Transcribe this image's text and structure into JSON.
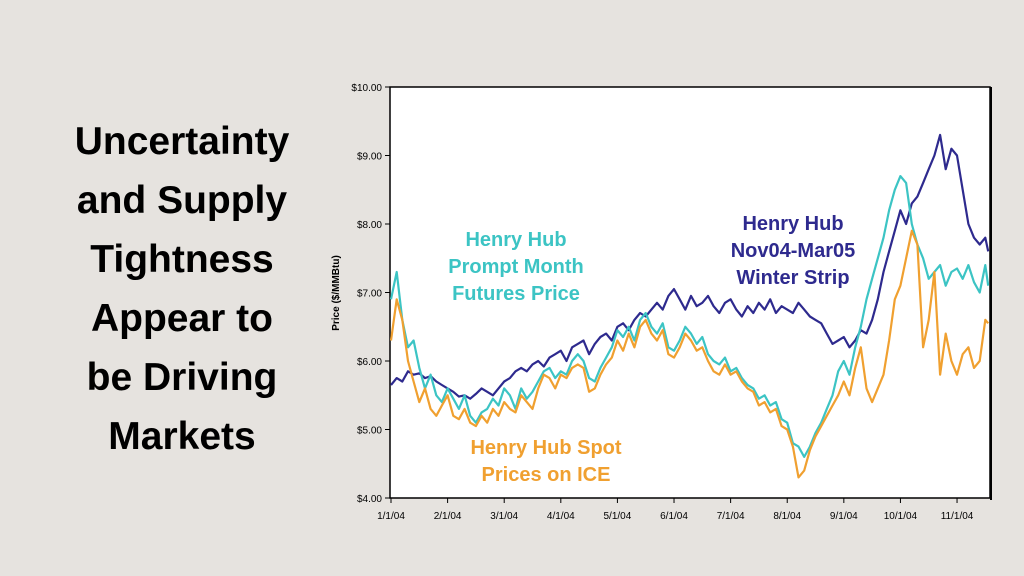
{
  "slide": {
    "title_lines": [
      "Uncertainty",
      "and Supply",
      "Tightness",
      "Appear to",
      "be Driving",
      "Markets"
    ]
  },
  "chart_data": {
    "type": "line",
    "ylabel": "Price ($/MMBtu)",
    "ylim": [
      4,
      10
    ],
    "y_ticks": [
      "$4.00",
      "$5.00",
      "$6.00",
      "$7.00",
      "$8.00",
      "$9.00",
      "$10.00"
    ],
    "x_ticks": [
      "1/1/04",
      "2/1/04",
      "3/1/04",
      "4/1/04",
      "5/1/04",
      "6/1/04",
      "7/1/04",
      "8/1/04",
      "9/1/04",
      "10/1/04",
      "11/1/04"
    ],
    "xlim": [
      0,
      10.6
    ],
    "grid": false,
    "series": [
      {
        "name": "Henry Hub Nov04-Mar05 Winter Strip",
        "color": "#2e2a8e",
        "label_lines": [
          "Henry Hub",
          "Nov04-Mar05",
          "Winter Strip"
        ],
        "x": [
          0.0,
          0.1,
          0.2,
          0.3,
          0.4,
          0.5,
          0.6,
          0.7,
          0.8,
          0.9,
          1.0,
          1.1,
          1.2,
          1.3,
          1.4,
          1.5,
          1.6,
          1.7,
          1.8,
          1.9,
          2.0,
          2.1,
          2.2,
          2.3,
          2.4,
          2.5,
          2.6,
          2.7,
          2.8,
          2.9,
          3.0,
          3.1,
          3.2,
          3.3,
          3.4,
          3.5,
          3.6,
          3.7,
          3.8,
          3.9,
          4.0,
          4.1,
          4.2,
          4.3,
          4.4,
          4.5,
          4.6,
          4.7,
          4.8,
          4.9,
          5.0,
          5.1,
          5.2,
          5.3,
          5.4,
          5.5,
          5.6,
          5.7,
          5.8,
          5.9,
          6.0,
          6.1,
          6.2,
          6.3,
          6.4,
          6.5,
          6.6,
          6.7,
          6.8,
          6.9,
          7.0,
          7.1,
          7.2,
          7.3,
          7.4,
          7.5,
          7.6,
          7.7,
          7.8,
          7.9,
          8.0,
          8.1,
          8.2,
          8.3,
          8.4,
          8.5,
          8.6,
          8.7,
          8.8,
          8.9,
          9.0,
          9.1,
          9.2,
          9.3,
          9.4,
          9.5,
          9.6,
          9.7,
          9.8,
          9.9,
          10.0,
          10.1,
          10.2,
          10.3,
          10.4,
          10.5,
          10.55
        ],
        "values": [
          5.65,
          5.75,
          5.7,
          5.85,
          5.8,
          5.82,
          5.75,
          5.78,
          5.7,
          5.65,
          5.6,
          5.55,
          5.48,
          5.5,
          5.45,
          5.52,
          5.6,
          5.55,
          5.5,
          5.6,
          5.7,
          5.75,
          5.85,
          5.9,
          5.85,
          5.95,
          6.0,
          5.92,
          6.05,
          6.1,
          6.15,
          6.0,
          6.2,
          6.25,
          6.3,
          6.1,
          6.25,
          6.35,
          6.4,
          6.3,
          6.5,
          6.55,
          6.45,
          6.6,
          6.7,
          6.65,
          6.75,
          6.85,
          6.75,
          6.95,
          7.05,
          6.9,
          6.75,
          6.95,
          6.8,
          6.85,
          6.95,
          6.8,
          6.7,
          6.85,
          6.9,
          6.75,
          6.65,
          6.8,
          6.7,
          6.85,
          6.75,
          6.9,
          6.7,
          6.8,
          6.75,
          6.7,
          6.85,
          6.75,
          6.65,
          6.6,
          6.55,
          6.4,
          6.25,
          6.3,
          6.35,
          6.2,
          6.3,
          6.45,
          6.4,
          6.6,
          6.9,
          7.3,
          7.6,
          7.9,
          8.2,
          8.0,
          8.3,
          8.4,
          8.6,
          8.8,
          9.0,
          9.3,
          8.8,
          9.1,
          9.0,
          8.5,
          8.0,
          7.8,
          7.7,
          7.8,
          7.6
        ]
      },
      {
        "name": "Henry Hub Prompt Month Futures Price",
        "color": "#3cc4c4",
        "label_lines": [
          "Henry Hub",
          "Prompt Month",
          "Futures Price"
        ],
        "x": [
          0.0,
          0.1,
          0.2,
          0.3,
          0.4,
          0.5,
          0.6,
          0.7,
          0.8,
          0.9,
          1.0,
          1.1,
          1.2,
          1.3,
          1.4,
          1.5,
          1.6,
          1.7,
          1.8,
          1.9,
          2.0,
          2.1,
          2.2,
          2.3,
          2.4,
          2.5,
          2.6,
          2.7,
          2.8,
          2.9,
          3.0,
          3.1,
          3.2,
          3.3,
          3.4,
          3.5,
          3.6,
          3.7,
          3.8,
          3.9,
          4.0,
          4.1,
          4.2,
          4.3,
          4.4,
          4.5,
          4.6,
          4.7,
          4.8,
          4.9,
          5.0,
          5.1,
          5.2,
          5.3,
          5.4,
          5.5,
          5.6,
          5.7,
          5.8,
          5.9,
          6.0,
          6.1,
          6.2,
          6.3,
          6.4,
          6.5,
          6.6,
          6.7,
          6.8,
          6.9,
          7.0,
          7.1,
          7.2,
          7.3,
          7.4,
          7.5,
          7.6,
          7.7,
          7.8,
          7.9,
          8.0,
          8.1,
          8.2,
          8.3,
          8.4,
          8.5,
          8.6,
          8.7,
          8.8,
          8.9,
          9.0,
          9.1,
          9.2,
          9.3,
          9.4,
          9.5,
          9.6,
          9.7,
          9.8,
          9.9,
          10.0,
          10.1,
          10.2,
          10.3,
          10.4,
          10.5,
          10.55
        ],
        "values": [
          6.9,
          7.3,
          6.6,
          6.2,
          6.3,
          5.9,
          5.6,
          5.8,
          5.5,
          5.4,
          5.6,
          5.45,
          5.3,
          5.5,
          5.2,
          5.1,
          5.25,
          5.3,
          5.45,
          5.35,
          5.6,
          5.5,
          5.3,
          5.6,
          5.45,
          5.55,
          5.7,
          5.85,
          5.9,
          5.75,
          5.85,
          5.8,
          6.0,
          6.1,
          6.0,
          5.75,
          5.7,
          5.9,
          6.05,
          6.2,
          6.45,
          6.35,
          6.5,
          6.3,
          6.6,
          6.7,
          6.5,
          6.4,
          6.55,
          6.2,
          6.15,
          6.3,
          6.5,
          6.4,
          6.25,
          6.35,
          6.1,
          6.0,
          5.95,
          6.05,
          5.85,
          5.9,
          5.75,
          5.65,
          5.6,
          5.45,
          5.5,
          5.35,
          5.4,
          5.15,
          5.1,
          4.8,
          4.75,
          4.6,
          4.75,
          4.95,
          5.1,
          5.3,
          5.5,
          5.85,
          6.0,
          5.8,
          6.2,
          6.5,
          6.9,
          7.2,
          7.5,
          7.8,
          8.2,
          8.5,
          8.7,
          8.6,
          8.0,
          7.7,
          7.5,
          7.2,
          7.3,
          7.4,
          7.1,
          7.3,
          7.35,
          7.2,
          7.4,
          7.15,
          7.0,
          7.4,
          7.1
        ]
      },
      {
        "name": "Henry Hub Spot Prices on ICE",
        "color": "#f0a030",
        "label_lines": [
          "Henry Hub Spot",
          "Prices on ICE"
        ],
        "x": [
          0.0,
          0.1,
          0.2,
          0.3,
          0.4,
          0.5,
          0.6,
          0.7,
          0.8,
          0.9,
          1.0,
          1.1,
          1.2,
          1.3,
          1.4,
          1.5,
          1.6,
          1.7,
          1.8,
          1.9,
          2.0,
          2.1,
          2.2,
          2.3,
          2.4,
          2.5,
          2.6,
          2.7,
          2.8,
          2.9,
          3.0,
          3.1,
          3.2,
          3.3,
          3.4,
          3.5,
          3.6,
          3.7,
          3.8,
          3.9,
          4.0,
          4.1,
          4.2,
          4.3,
          4.4,
          4.5,
          4.6,
          4.7,
          4.8,
          4.9,
          5.0,
          5.1,
          5.2,
          5.3,
          5.4,
          5.5,
          5.6,
          5.7,
          5.8,
          5.9,
          6.0,
          6.1,
          6.2,
          6.3,
          6.4,
          6.5,
          6.6,
          6.7,
          6.8,
          6.9,
          7.0,
          7.1,
          7.2,
          7.3,
          7.4,
          7.5,
          7.6,
          7.7,
          7.8,
          7.9,
          8.0,
          8.1,
          8.2,
          8.3,
          8.4,
          8.5,
          8.6,
          8.7,
          8.8,
          8.9,
          9.0,
          9.1,
          9.2,
          9.3,
          9.4,
          9.5,
          9.6,
          9.7,
          9.8,
          9.9,
          10.0,
          10.1,
          10.2,
          10.3,
          10.4,
          10.5,
          10.55
        ],
        "values": [
          6.3,
          6.9,
          6.6,
          6.0,
          5.7,
          5.4,
          5.6,
          5.3,
          5.2,
          5.35,
          5.5,
          5.2,
          5.15,
          5.3,
          5.1,
          5.05,
          5.2,
          5.1,
          5.3,
          5.2,
          5.4,
          5.3,
          5.25,
          5.5,
          5.4,
          5.3,
          5.6,
          5.8,
          5.75,
          5.6,
          5.8,
          5.75,
          5.9,
          5.95,
          5.9,
          5.55,
          5.6,
          5.8,
          5.95,
          6.05,
          6.3,
          6.15,
          6.4,
          6.2,
          6.5,
          6.6,
          6.4,
          6.3,
          6.45,
          6.1,
          6.05,
          6.2,
          6.4,
          6.3,
          6.15,
          6.2,
          6.0,
          5.85,
          5.8,
          5.95,
          5.8,
          5.85,
          5.7,
          5.6,
          5.55,
          5.35,
          5.4,
          5.25,
          5.3,
          5.05,
          5.0,
          4.75,
          4.3,
          4.4,
          4.7,
          4.9,
          5.05,
          5.2,
          5.35,
          5.5,
          5.7,
          5.5,
          5.9,
          6.2,
          5.6,
          5.4,
          5.6,
          5.8,
          6.3,
          6.9,
          7.1,
          7.5,
          7.9,
          7.7,
          6.2,
          6.6,
          7.3,
          5.8,
          6.4,
          6.0,
          5.8,
          6.1,
          6.2,
          5.9,
          6.0,
          6.6,
          6.55
        ]
      }
    ]
  }
}
